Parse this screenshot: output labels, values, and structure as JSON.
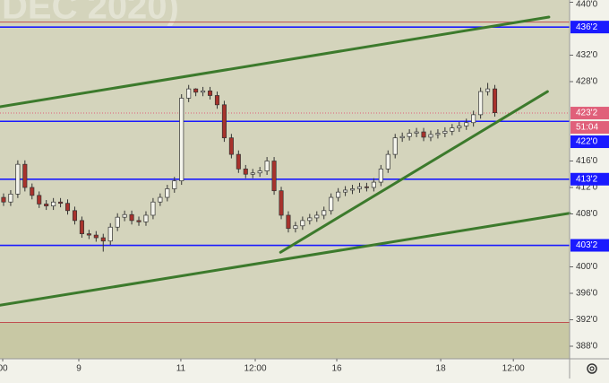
{
  "chart_data": {
    "type": "candlestick",
    "watermark": "DEC 2020)",
    "xlim": [
      -0.5,
      79.5
    ],
    "ylim": [
      386.1,
      440.34
    ],
    "xticks": [
      {
        "value": -0.12,
        "label": "00"
      },
      {
        "value": 10.57,
        "label": "9"
      },
      {
        "value": 24.9,
        "label": "11"
      },
      {
        "value": 35.35,
        "label": "12:00"
      },
      {
        "value": 46.8,
        "label": "16"
      },
      {
        "value": 61.4,
        "label": "18"
      },
      {
        "value": 71.6,
        "label": "12:00"
      }
    ],
    "yticks": [
      {
        "value": 440,
        "label": "440'0"
      },
      {
        "value": 432,
        "label": "432'0"
      },
      {
        "value": 428,
        "label": "428'0"
      },
      {
        "value": 416,
        "label": "416'0"
      },
      {
        "value": 412,
        "label": "412'0"
      },
      {
        "value": 408,
        "label": "408'0"
      },
      {
        "value": 400,
        "label": "400'0"
      },
      {
        "value": 396,
        "label": "396'0"
      },
      {
        "value": 392,
        "label": "392'0"
      },
      {
        "value": 388,
        "label": "388'0"
      }
    ],
    "up_color": "#f4f4ec",
    "down_color": "#a8322c",
    "open": [
      410.5,
      409.8,
      411.0,
      415.5,
      412.0,
      410.8,
      409.5,
      409.2,
      409.8,
      409.6,
      408.5,
      407.0,
      405.0,
      404.8,
      404.4,
      403.9,
      406.0,
      407.5,
      407.9,
      407.0,
      406.8,
      407.8,
      409.8,
      410.5,
      411.8,
      413.0,
      425.5,
      426.9,
      426.4,
      426.6,
      425.9,
      424.5,
      419.5,
      417.0,
      414.8,
      414.0,
      414.2,
      414.5,
      416.0,
      411.5,
      407.8,
      405.8,
      406.2,
      407.0,
      407.4,
      407.8,
      408.5,
      410.5,
      411.3,
      411.6,
      411.8,
      412.1,
      412.0,
      412.8,
      414.8,
      417.0,
      419.5,
      419.7,
      420.2,
      420.4,
      419.6,
      420.0,
      420.2,
      420.5,
      421.0,
      421.3,
      421.8,
      423.0,
      426.5,
      426.9
    ],
    "high": [
      411.1,
      411.6,
      416.1,
      416.1,
      412.6,
      411.4,
      410.1,
      410.4,
      410.4,
      410.2,
      409.1,
      407.6,
      405.6,
      405.4,
      405.0,
      406.6,
      408.1,
      408.5,
      408.5,
      407.6,
      408.4,
      410.4,
      411.1,
      412.4,
      413.6,
      426.1,
      427.5,
      427.0,
      427.2,
      427.2,
      426.5,
      425.1,
      420.1,
      417.6,
      415.4,
      414.8,
      415.1,
      416.6,
      416.6,
      412.1,
      408.4,
      406.8,
      407.6,
      408.0,
      408.4,
      409.1,
      411.1,
      411.9,
      412.2,
      412.4,
      412.7,
      412.7,
      413.4,
      415.4,
      417.6,
      420.1,
      420.3,
      420.8,
      421.0,
      421.0,
      420.6,
      420.8,
      421.1,
      421.6,
      421.9,
      422.4,
      423.6,
      427.1,
      427.8,
      427.5
    ],
    "low": [
      409.2,
      409.2,
      410.4,
      411.4,
      410.2,
      408.9,
      408.6,
      408.6,
      409.0,
      407.9,
      406.4,
      404.4,
      404.2,
      403.8,
      402.3,
      403.3,
      405.4,
      406.9,
      406.4,
      406.2,
      406.2,
      407.2,
      409.2,
      409.9,
      411.2,
      412.4,
      424.9,
      425.8,
      425.8,
      425.3,
      423.9,
      418.9,
      416.4,
      414.2,
      413.4,
      413.4,
      413.6,
      413.9,
      410.9,
      407.2,
      405.2,
      405.2,
      405.6,
      406.4,
      406.8,
      407.2,
      407.9,
      409.9,
      410.7,
      411.0,
      411.2,
      411.4,
      411.4,
      412.2,
      414.2,
      416.4,
      418.9,
      419.1,
      419.6,
      419.0,
      419.0,
      419.4,
      419.6,
      419.9,
      420.4,
      420.7,
      421.2,
      422.4,
      425.9,
      422.7
    ],
    "close": [
      409.8,
      411.0,
      415.5,
      412.0,
      410.8,
      409.5,
      409.2,
      409.8,
      409.6,
      408.5,
      407.0,
      405.0,
      404.8,
      404.4,
      403.9,
      406.0,
      407.5,
      407.9,
      407.0,
      406.8,
      407.8,
      409.8,
      410.5,
      411.8,
      413.0,
      425.5,
      426.9,
      426.4,
      426.6,
      425.9,
      424.5,
      419.5,
      417.0,
      414.8,
      414.0,
      414.2,
      414.5,
      416.0,
      411.5,
      407.8,
      405.8,
      406.2,
      407.0,
      407.4,
      407.8,
      408.5,
      410.5,
      411.3,
      411.6,
      411.8,
      412.1,
      412.0,
      412.8,
      414.8,
      417.0,
      419.5,
      419.7,
      420.2,
      420.4,
      419.6,
      420.0,
      420.2,
      420.5,
      421.0,
      421.3,
      421.8,
      423.0,
      426.5,
      426.9,
      423.3
    ],
    "levels": [
      {
        "value": 436.25,
        "label": "436'2",
        "color": "#1a1aff"
      },
      {
        "value": 422,
        "label": "422'0",
        "color": "#1a1aff"
      },
      {
        "value": 413.25,
        "label": "413'2",
        "color": "#1a1aff"
      },
      {
        "value": 403.25,
        "label": "403'2",
        "color": "#1a1aff"
      },
      {
        "value": 437,
        "color": "#c05050"
      },
      {
        "value": 391.6,
        "color": "#c05050"
      }
    ],
    "last_price": {
      "value": 423.25,
      "label": "423'2",
      "countdown": "51:04",
      "color": "#e0607a"
    },
    "trend_lines": [
      {
        "x": [
          -0.5,
          76.6
        ],
        "y": [
          424.2,
          437.76
        ],
        "color": "#3c7a2c"
      },
      {
        "x": [
          38.9,
          76.4
        ],
        "y": [
          402.2,
          426.5
        ],
        "color": "#3c7a2c"
      },
      {
        "x": [
          -0.5,
          79.5
        ],
        "y": [
          394.2,
          408.1
        ],
        "color": "#3c7a2c"
      }
    ]
  }
}
